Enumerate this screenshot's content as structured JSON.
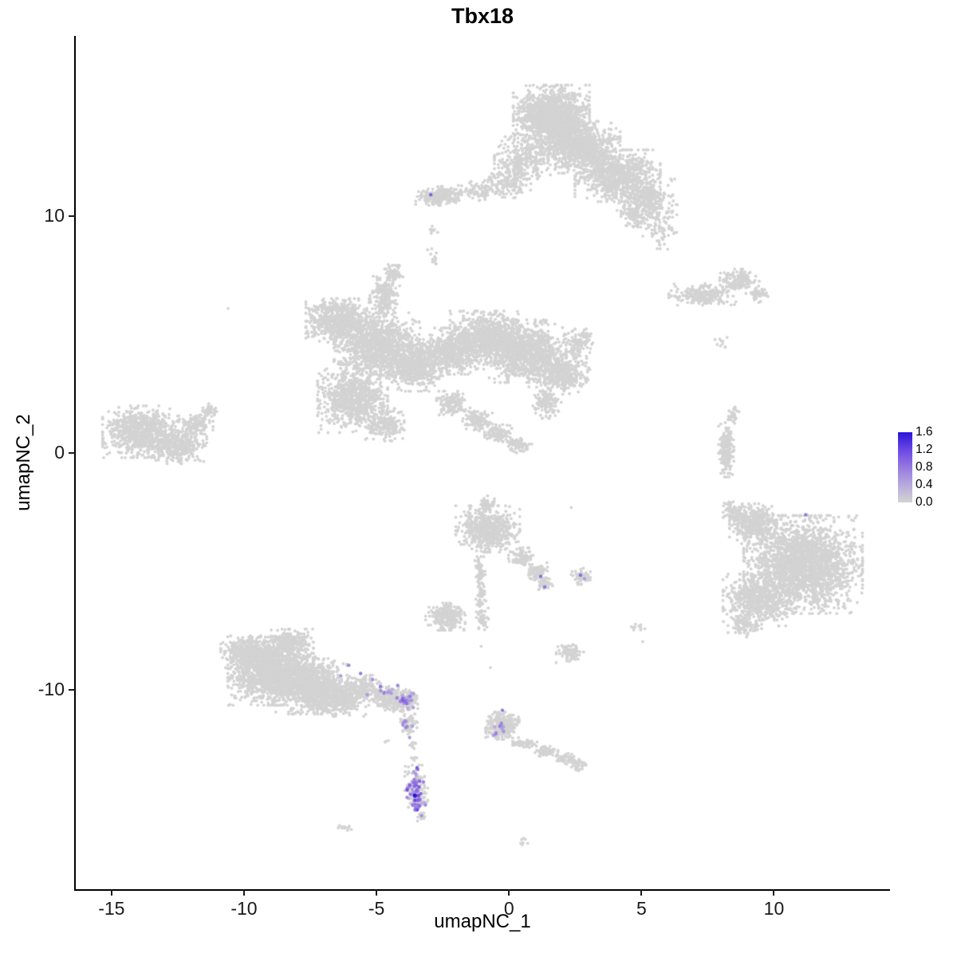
{
  "chart_data": {
    "type": "scatter",
    "title": "Tbx18",
    "xlabel": "umapNC_1",
    "ylabel": "umapNC_2",
    "xlim": [
      -16.35,
      14.35
    ],
    "ylim": [
      -18.4,
      17.6
    ],
    "x_ticks": [
      -15,
      -10,
      -5,
      0,
      5,
      10
    ],
    "y_ticks": [
      10,
      0,
      -10
    ],
    "grid": false,
    "legend": {
      "position": "right",
      "vmin": 0.0,
      "vmax": 1.6,
      "tick_values": [
        1.6,
        1.2,
        0.8,
        0.4,
        0.0
      ],
      "tick_labels": [
        "1.6",
        "1.2",
        "0.8",
        "0.4",
        "0.0"
      ]
    },
    "colors": {
      "point_grey": "#D3D3D3",
      "low": "#D3D3D3",
      "high": "#2B15D9",
      "gradient_stops": [
        "#D3D3D3",
        "#B7A9DC",
        "#9679E0",
        "#6B48E4",
        "#2B15D9"
      ],
      "axis": "#1a1a1a",
      "background": "#FFFFFF"
    },
    "seed": 11,
    "point_radius": 1.9,
    "background_clusters": [
      [
        1.6,
        14.2,
        1.25,
        1.15,
        1500
      ],
      [
        2.7,
        12.9,
        1.3,
        0.95,
        900
      ],
      [
        4.1,
        11.7,
        1.4,
        0.95,
        850
      ],
      [
        5.2,
        10.7,
        1.0,
        0.75,
        350
      ],
      [
        0.6,
        12.4,
        1.0,
        0.9,
        300
      ],
      [
        -0.1,
        11.4,
        0.8,
        0.6,
        150
      ],
      [
        -1.2,
        11.05,
        0.7,
        0.4,
        90
      ],
      [
        -2.6,
        10.85,
        0.8,
        0.35,
        240
      ],
      [
        5.7,
        9.4,
        0.6,
        0.8,
        70
      ],
      [
        4.8,
        10.0,
        0.5,
        0.5,
        80
      ],
      [
        -2.9,
        9.4,
        0.18,
        0.22,
        8
      ],
      [
        -2.85,
        8.3,
        0.22,
        0.28,
        12
      ],
      [
        -6.4,
        5.6,
        1.1,
        0.8,
        650
      ],
      [
        -5.0,
        4.6,
        1.4,
        1.15,
        1150
      ],
      [
        -3.6,
        3.7,
        1.1,
        0.95,
        650
      ],
      [
        -2.2,
        4.3,
        1.0,
        0.85,
        550
      ],
      [
        -0.9,
        4.9,
        1.15,
        0.95,
        750
      ],
      [
        0.6,
        4.3,
        1.35,
        1.15,
        1100
      ],
      [
        1.9,
        3.4,
        1.0,
        0.8,
        450
      ],
      [
        2.7,
        4.7,
        0.55,
        0.55,
        110
      ],
      [
        -4.7,
        6.6,
        0.5,
        0.75,
        220
      ],
      [
        -4.35,
        7.6,
        0.3,
        0.35,
        60
      ],
      [
        -5.9,
        2.3,
        1.15,
        1.25,
        850
      ],
      [
        -4.7,
        1.2,
        0.65,
        0.6,
        200
      ],
      [
        -2.1,
        2.1,
        0.55,
        0.45,
        150
      ],
      [
        -1.2,
        1.4,
        0.5,
        0.4,
        120
      ],
      [
        -0.4,
        0.8,
        0.45,
        0.35,
        100
      ],
      [
        0.4,
        0.35,
        0.4,
        0.3,
        70
      ],
      [
        1.4,
        2.1,
        0.5,
        0.55,
        130
      ],
      [
        -13.9,
        0.9,
        1.25,
        0.95,
        800
      ],
      [
        -12.5,
        0.3,
        0.95,
        0.65,
        350
      ],
      [
        -11.8,
        1.2,
        0.55,
        0.45,
        130
      ],
      [
        -11.3,
        1.8,
        0.3,
        0.25,
        40
      ],
      [
        7.3,
        6.7,
        1.1,
        0.4,
        260
      ],
      [
        8.7,
        7.3,
        0.65,
        0.4,
        150
      ],
      [
        9.4,
        6.7,
        0.4,
        0.3,
        60
      ],
      [
        8.0,
        4.6,
        0.2,
        0.3,
        10
      ],
      [
        8.2,
        0.2,
        0.25,
        1.05,
        190
      ],
      [
        8.45,
        1.6,
        0.2,
        0.3,
        30
      ],
      [
        8.3,
        -2.1,
        0.15,
        0.2,
        8
      ],
      [
        11.1,
        -4.7,
        1.95,
        1.8,
        2300
      ],
      [
        9.4,
        -6.2,
        1.15,
        0.95,
        600
      ],
      [
        9.3,
        -3.0,
        0.85,
        0.75,
        400
      ],
      [
        8.6,
        -2.5,
        0.45,
        0.4,
        90
      ],
      [
        8.9,
        -7.3,
        0.55,
        0.4,
        90
      ],
      [
        -0.8,
        -3.2,
        1.05,
        0.85,
        600
      ],
      [
        -0.8,
        -2.15,
        0.25,
        0.3,
        60
      ],
      [
        0.5,
        -4.4,
        0.45,
        0.35,
        90
      ],
      [
        1.05,
        -5.0,
        0.35,
        0.35,
        70
      ],
      [
        1.3,
        -5.5,
        0.3,
        0.3,
        50
      ],
      [
        2.75,
        -5.2,
        0.35,
        0.3,
        60
      ],
      [
        -1.1,
        -5.0,
        0.2,
        0.55,
        60
      ],
      [
        -1.05,
        -6.1,
        0.18,
        0.5,
        50
      ],
      [
        -1.0,
        -7.0,
        0.2,
        0.45,
        45
      ],
      [
        -2.4,
        -6.9,
        0.65,
        0.5,
        260
      ],
      [
        2.3,
        -8.45,
        0.45,
        0.35,
        100
      ],
      [
        4.95,
        -7.35,
        0.3,
        0.2,
        12
      ],
      [
        -9.0,
        -9.2,
        1.4,
        1.25,
        1500
      ],
      [
        -7.5,
        -9.8,
        1.2,
        1.05,
        950
      ],
      [
        -9.9,
        -8.4,
        0.85,
        0.6,
        350
      ],
      [
        -8.3,
        -8.0,
        0.8,
        0.5,
        250
      ],
      [
        -6.5,
        -10.3,
        0.95,
        0.7,
        450
      ],
      [
        -5.4,
        -10.0,
        0.75,
        0.55,
        180
      ],
      [
        -4.5,
        -10.35,
        0.65,
        0.45,
        200
      ],
      [
        -3.9,
        -10.5,
        0.4,
        0.35,
        110
      ],
      [
        -3.8,
        -11.4,
        0.3,
        0.4,
        60
      ],
      [
        -3.6,
        -12.3,
        0.15,
        0.2,
        10
      ],
      [
        -3.55,
        -12.9,
        0.12,
        0.15,
        6
      ],
      [
        -4.65,
        -12.15,
        0.1,
        0.1,
        3
      ],
      [
        -3.5,
        -14.2,
        0.38,
        0.9,
        120
      ],
      [
        -3.3,
        -15.35,
        0.2,
        0.2,
        15
      ],
      [
        -6.2,
        -15.8,
        0.35,
        0.1,
        12
      ],
      [
        -0.25,
        -11.5,
        0.55,
        0.5,
        300
      ],
      [
        0.6,
        -12.25,
        0.4,
        0.2,
        60
      ],
      [
        1.4,
        -12.6,
        0.45,
        0.2,
        60
      ],
      [
        2.15,
        -12.9,
        0.4,
        0.2,
        50
      ],
      [
        2.65,
        -13.15,
        0.3,
        0.22,
        40
      ],
      [
        0.45,
        -16.35,
        0.25,
        0.15,
        7
      ]
    ],
    "background_singles": [
      [
        -10.6,
        6.1
      ],
      [
        2.35,
        -2.3
      ],
      [
        -1.05,
        -8.15
      ],
      [
        -0.7,
        -9.05
      ],
      [
        5.05,
        -7.95
      ]
    ],
    "expression_blobs": [
      [
        -3.9,
        -10.45,
        0.32,
        0.28,
        26,
        0.3,
        1.0
      ],
      [
        -4.55,
        -10.15,
        0.25,
        0.2,
        8,
        0.3,
        0.8
      ],
      [
        -3.85,
        -11.35,
        0.18,
        0.3,
        8,
        0.3,
        0.8
      ],
      [
        -3.5,
        -14.2,
        0.3,
        0.8,
        55,
        0.2,
        1.2
      ],
      [
        -3.45,
        -14.9,
        0.22,
        0.25,
        12,
        0.3,
        0.9
      ],
      [
        -0.35,
        -11.65,
        0.28,
        0.28,
        10,
        0.3,
        0.8
      ]
    ],
    "expression_points": [
      [
        -2.95,
        10.9,
        1.0
      ],
      [
        11.2,
        -2.6,
        0.8
      ],
      [
        1.2,
        -5.2,
        0.9
      ],
      [
        1.35,
        -5.65,
        0.8
      ],
      [
        2.7,
        -5.15,
        0.9
      ],
      [
        2.85,
        -5.3,
        0.5
      ],
      [
        -6.05,
        -8.95,
        0.7
      ],
      [
        -5.6,
        -9.3,
        0.8
      ],
      [
        -5.15,
        -9.55,
        0.6
      ],
      [
        -4.85,
        -9.85,
        0.8
      ],
      [
        -5.35,
        -10.2,
        0.5
      ],
      [
        -4.2,
        -9.8,
        0.7
      ],
      [
        -6.35,
        -9.4,
        0.5
      ],
      [
        -0.25,
        -10.85,
        0.8
      ],
      [
        -3.55,
        -14.45,
        1.6
      ],
      [
        -3.3,
        -15.3,
        0.6
      ],
      [
        -0.5,
        -11.85,
        0.7
      ],
      [
        -3.75,
        -12.0,
        0.5
      ],
      [
        -3.6,
        -13.45,
        0.5
      ]
    ]
  }
}
